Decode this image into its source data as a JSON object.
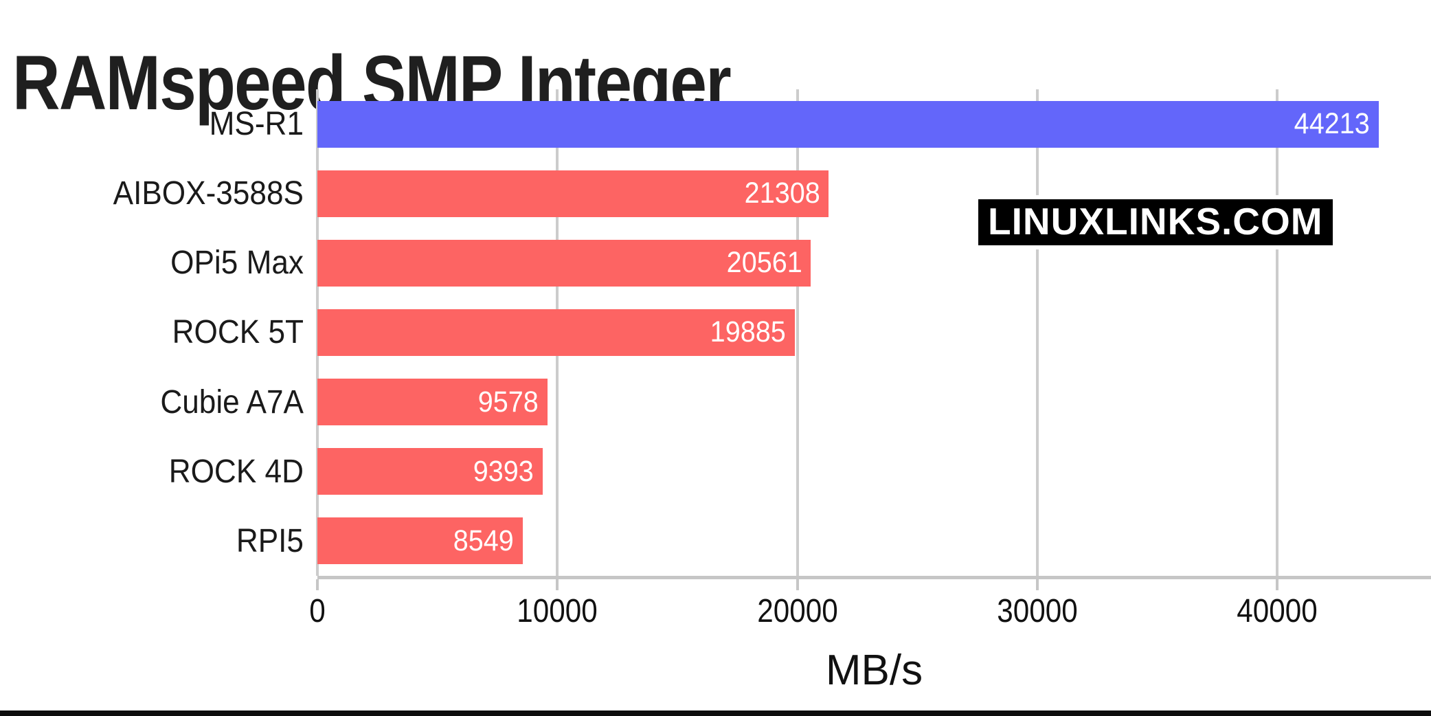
{
  "page": {
    "title": "RAMspeed SMP Integer",
    "watermark": "LINUXLINKS.COM"
  },
  "chart_data": {
    "type": "bar",
    "orientation": "horizontal",
    "title": "RAMspeed SMP Integer",
    "categories": [
      "MS-R1",
      "AIBOX-3588S",
      "OPi5 Max",
      "ROCK 5T",
      "Cubie A7A",
      "ROCK 4D",
      "RPI5"
    ],
    "values": [
      44213,
      21308,
      20561,
      19885,
      9578,
      9393,
      8549
    ],
    "xlabel": "MB/s",
    "ylabel": "",
    "x_ticks": [
      0,
      10000,
      20000,
      30000,
      40000
    ],
    "xlim": [
      0,
      46400
    ],
    "grid": true,
    "legend": "none",
    "value_labels": "inside-end",
    "colors": {
      "highlight_bar": "#6366fa",
      "default_bar": "#fd6463",
      "highlight_index": 0,
      "gridline": "#cccccc",
      "axis_line": "#c6c6c6",
      "value_text": "#ffffff",
      "label_text": "#1a1a1a",
      "title_text": "#1f1f1f",
      "watermark_bg": "#000000",
      "watermark_text": "#ffffff",
      "bottom_strip": "#0d0d0d"
    }
  }
}
